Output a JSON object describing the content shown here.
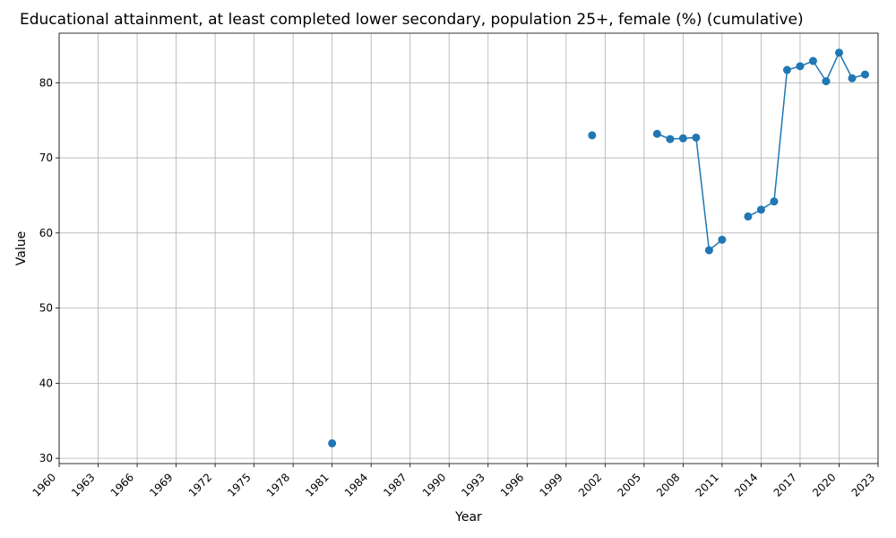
{
  "chart_data": {
    "type": "line",
    "title": "Educational attainment, at least completed lower secondary, population 25+, female (%) (cumulative)",
    "xlabel": "Year",
    "ylabel": "Value",
    "xlim": [
      1960,
      2023
    ],
    "ylim": [
      29.3,
      86.6
    ],
    "x_ticks": [
      1960,
      1963,
      1966,
      1969,
      1972,
      1975,
      1978,
      1981,
      1984,
      1987,
      1990,
      1993,
      1996,
      1999,
      2002,
      2005,
      2008,
      2011,
      2014,
      2017,
      2020,
      2023
    ],
    "y_ticks": [
      30,
      40,
      50,
      60,
      70,
      80
    ],
    "grid": true,
    "color": "#1f77b4",
    "series": [
      {
        "x": [
          1960,
          1961,
          1962,
          1963,
          1964,
          1965,
          1966,
          1967,
          1968,
          1969,
          1970,
          1971,
          1972,
          1973,
          1974,
          1975,
          1976,
          1977,
          1978,
          1979,
          1980,
          1981,
          1982,
          1983,
          1984,
          1985,
          1986,
          1987,
          1988,
          1989,
          1990,
          1991,
          1992,
          1993,
          1994,
          1995,
          1996,
          1997,
          1998,
          1999,
          2000,
          2001,
          2002,
          2003,
          2004,
          2005,
          2006,
          2007,
          2008,
          2009,
          2010,
          2011,
          2012,
          2013,
          2014,
          2015,
          2016,
          2017,
          2018,
          2019,
          2020,
          2021,
          2022
        ],
        "y": [
          null,
          null,
          null,
          null,
          null,
          null,
          null,
          null,
          null,
          null,
          null,
          null,
          null,
          null,
          null,
          null,
          null,
          null,
          null,
          null,
          null,
          32.0,
          null,
          null,
          null,
          null,
          null,
          null,
          null,
          null,
          null,
          null,
          null,
          null,
          null,
          null,
          null,
          null,
          null,
          null,
          null,
          73.0,
          null,
          null,
          null,
          null,
          73.2,
          72.5,
          72.6,
          72.7,
          57.7,
          59.1,
          null,
          62.2,
          63.1,
          64.2,
          81.7,
          82.2,
          82.9,
          80.2,
          84.0,
          80.6,
          81.1
        ]
      }
    ]
  }
}
